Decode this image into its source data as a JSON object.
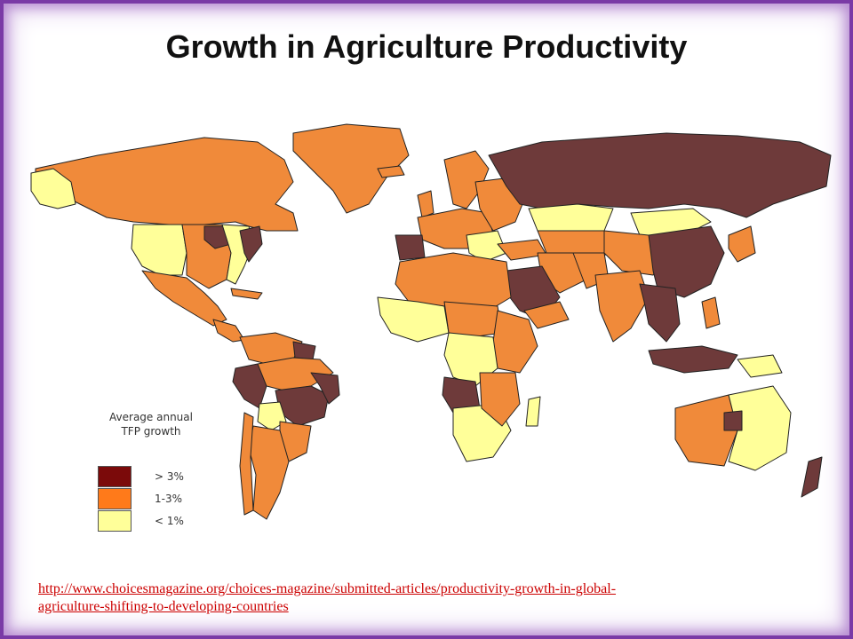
{
  "title": "Growth in Agriculture Productivity",
  "legend": {
    "title_line1": "Average annual",
    "title_line2": "TFP growth",
    "items": [
      {
        "label": "> 3%",
        "color": "#7b0a0a"
      },
      {
        "label": "1-3%",
        "color": "#ff7a1a"
      },
      {
        "label": "< 1%",
        "color": "#ffff99"
      }
    ]
  },
  "map_colors": {
    "high": "#6e3a3a",
    "mid": "#f08a3a",
    "low": "#ffff99",
    "border": "#222222"
  },
  "source": {
    "url": "http://www.choicesmagazine.org/choices-magazine/submitted-articles/productivity-growth-in-global-agriculture-shifting-to-developing-countries",
    "line1": "http://www.choicesmagazine.org/choices-magazine/submitted-articles/productivity-growth-in-global-",
    "line2": "agriculture-shifting-to-developing-countries"
  }
}
